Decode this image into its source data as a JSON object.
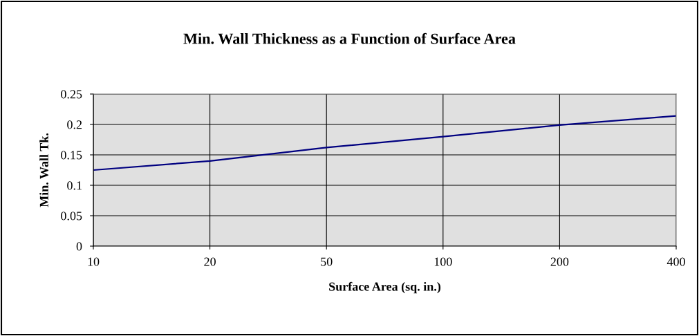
{
  "chart_data": {
    "type": "line",
    "title": "Min. Wall Thickness as a Function of Surface Area",
    "xlabel": "Surface Area (sq. in.)",
    "ylabel": "Min. Wall Tk.",
    "categories": [
      "10",
      "20",
      "50",
      "100",
      "200",
      "400"
    ],
    "series": [
      {
        "color": "#000080",
        "values": [
          0.125,
          0.14,
          0.162,
          0.18,
          0.199,
          0.214
        ]
      }
    ],
    "ylim": [
      0,
      0.25
    ],
    "yticks": [
      0,
      0.05,
      0.1,
      0.15,
      0.2,
      0.25
    ],
    "grid": true,
    "marker": "none",
    "line_style": "solid"
  }
}
